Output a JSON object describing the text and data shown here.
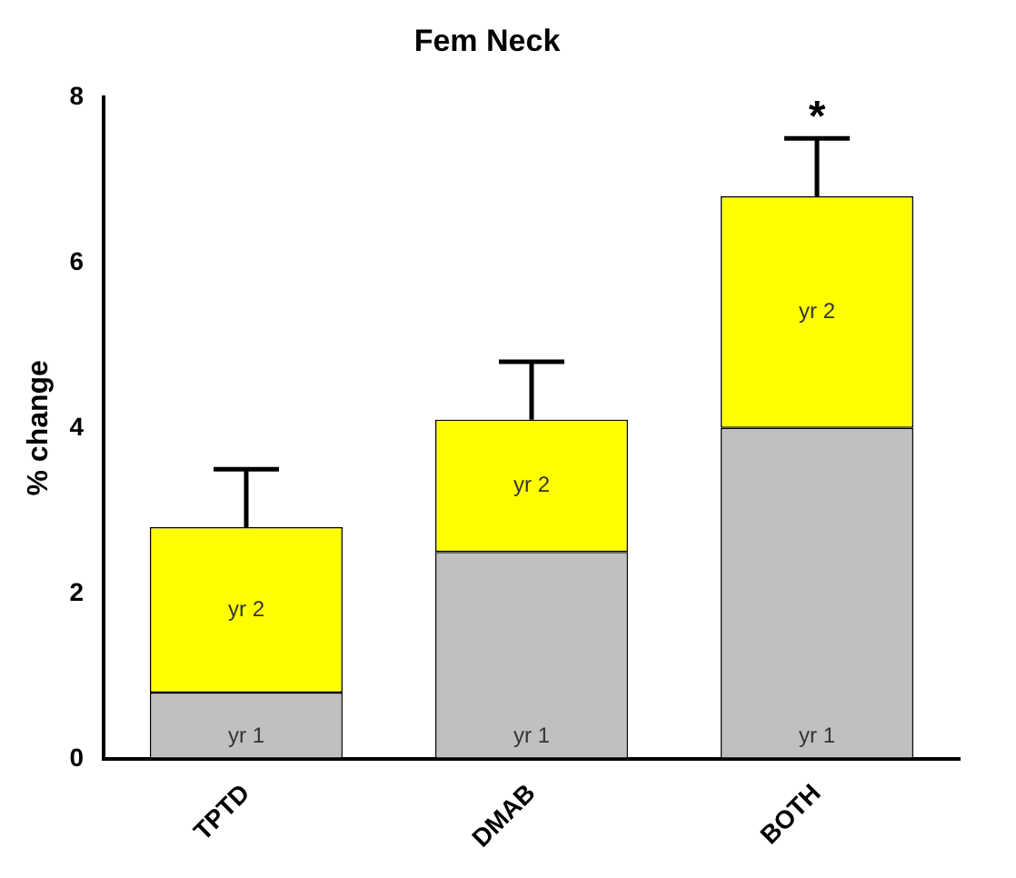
{
  "chart_data": {
    "type": "bar",
    "title": "Fem Neck",
    "ylabel": "% change",
    "categories": [
      "TPTD",
      "DMAB",
      "BOTH"
    ],
    "stacked": true,
    "series": [
      {
        "name": "yr 1",
        "color": "#c0c0c0",
        "values": [
          0.8,
          2.5,
          4.0
        ]
      },
      {
        "name": "yr 2",
        "color": "#ffff00",
        "values": [
          2.0,
          1.6,
          2.8
        ],
        "errors": [
          [
            2.8,
            3.5
          ],
          [
            4.1,
            4.8
          ],
          [
            6.8,
            7.5
          ]
        ]
      }
    ],
    "ylim": [
      0,
      8
    ],
    "yticks": [
      0,
      2,
      4,
      6,
      8
    ],
    "grid": false,
    "legend": false,
    "annotations": [
      "*"
    ]
  }
}
